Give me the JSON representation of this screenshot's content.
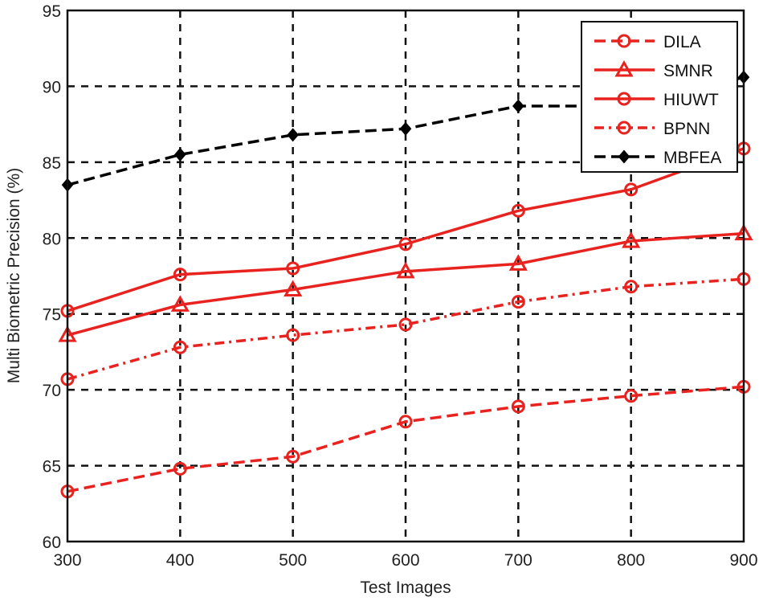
{
  "chart_data": {
    "type": "line",
    "title": "",
    "xlabel": "Test Images",
    "ylabel": "Multi Biometric Precision (%)",
    "x": [
      300,
      400,
      500,
      600,
      700,
      800,
      900
    ],
    "xlim": [
      300,
      900
    ],
    "ylim": [
      60,
      95
    ],
    "xticks": [
      300,
      400,
      500,
      600,
      700,
      800,
      900
    ],
    "yticks": [
      60,
      65,
      70,
      75,
      80,
      85,
      90,
      95
    ],
    "grid": true,
    "legend_position": "upper right",
    "series": [
      {
        "name": "DILA",
        "color": "#e8231f",
        "line": "dashed",
        "marker": "circle",
        "values": [
          63.3,
          64.8,
          65.6,
          67.9,
          68.9,
          69.6,
          70.2
        ]
      },
      {
        "name": "SMNR",
        "color": "#e8231f",
        "line": "solid",
        "marker": "triangle",
        "values": [
          73.6,
          75.6,
          76.6,
          77.8,
          78.3,
          79.8,
          80.3
        ]
      },
      {
        "name": "HIUWT",
        "color": "#e8231f",
        "line": "solid",
        "marker": "circle",
        "values": [
          75.2,
          77.6,
          78.0,
          79.6,
          81.8,
          83.2,
          85.9
        ]
      },
      {
        "name": "BPNN",
        "color": "#e8231f",
        "line": "dashdot",
        "marker": "circle",
        "values": [
          70.7,
          72.8,
          73.6,
          74.3,
          75.8,
          76.8,
          77.3
        ]
      },
      {
        "name": "MBFEA",
        "color": "#000000",
        "line": "dashed",
        "marker": "diamond",
        "values": [
          83.5,
          85.5,
          86.8,
          87.2,
          88.7,
          88.7,
          90.6
        ]
      }
    ]
  }
}
